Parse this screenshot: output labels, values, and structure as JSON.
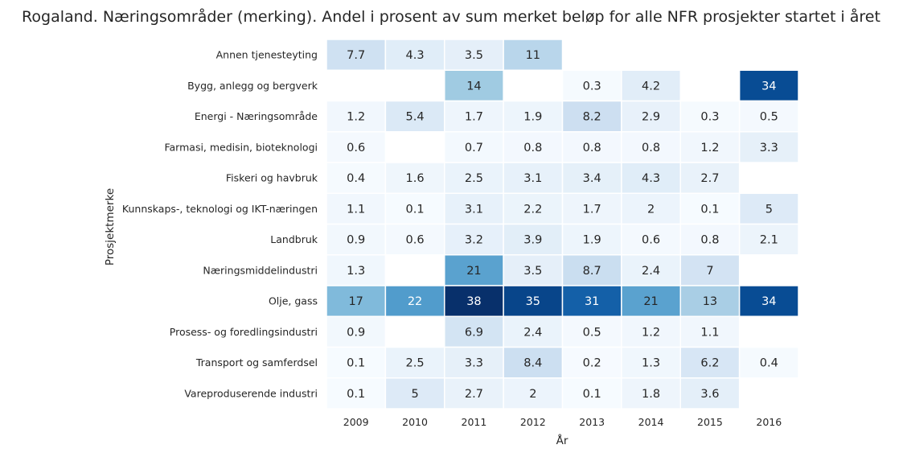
{
  "chart_data": {
    "type": "heatmap",
    "title": "Rogaland. Næringsområder (merking). Andel i prosent av sum merket beløp for alle NFR prosjekter startet i året",
    "xlabel": "År",
    "ylabel": "Prosjektmerke",
    "x": [
      "2009",
      "2010",
      "2011",
      "2012",
      "2013",
      "2014",
      "2015",
      "2016"
    ],
    "y": [
      "Annen tjenesteyting",
      "Bygg, anlegg og bergverk",
      "Energi - Næringsområde",
      "Farmasi, medisin, bioteknologi",
      "Fiskeri og havbruk",
      "Kunnskaps-, teknologi og IKT-næringen",
      "Landbruk",
      "Næringsmiddelindustri",
      "Olje, gass",
      "Prosess- og foredlingsindustri",
      "Transport og samferdsel",
      "Vareproduserende industri"
    ],
    "values": [
      [
        7.7,
        4.3,
        3.5,
        11,
        null,
        null,
        null,
        null
      ],
      [
        null,
        null,
        14,
        null,
        0.3,
        4.2,
        null,
        34
      ],
      [
        1.2,
        5.4,
        1.7,
        1.9,
        8.2,
        2.9,
        0.3,
        0.5
      ],
      [
        0.6,
        null,
        0.7,
        0.8,
        0.8,
        0.8,
        1.2,
        3.3
      ],
      [
        0.4,
        1.6,
        2.5,
        3.1,
        3.4,
        4.3,
        2.7,
        null
      ],
      [
        1.1,
        0.1,
        3.1,
        2.2,
        1.7,
        2,
        0.1,
        5
      ],
      [
        0.9,
        0.6,
        3.2,
        3.9,
        1.9,
        0.6,
        0.8,
        2.1
      ],
      [
        1.3,
        null,
        21,
        3.5,
        8.7,
        2.4,
        7,
        null
      ],
      [
        17,
        22,
        38,
        35,
        31,
        21,
        13,
        34
      ],
      [
        0.9,
        null,
        6.9,
        2.4,
        0.5,
        1.2,
        1.1,
        null
      ],
      [
        0.1,
        2.5,
        3.3,
        8.4,
        0.2,
        1.3,
        6.2,
        0.4
      ],
      [
        0.1,
        5,
        2.7,
        2,
        0.1,
        1.8,
        3.6,
        null
      ]
    ],
    "value_range": [
      0,
      38
    ],
    "colormap": "Blues",
    "grid": false,
    "legend": "none"
  }
}
